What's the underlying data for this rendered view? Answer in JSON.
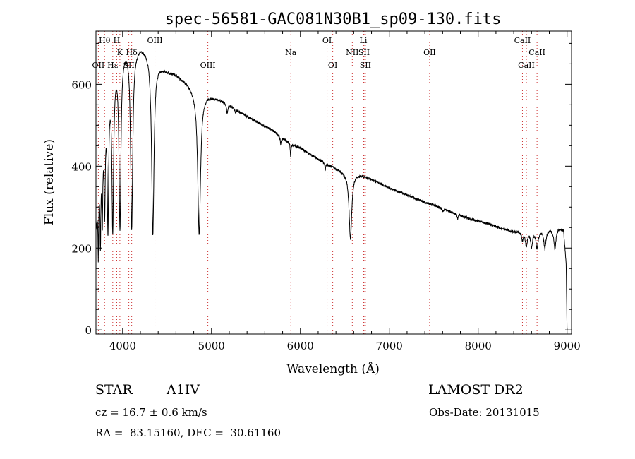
{
  "chart_data": {
    "type": "line",
    "title": "spec-56581-GAC081N30B1_sp09-130.fits",
    "xlabel": "Wavelength (Å)",
    "ylabel": "Flux (relative)",
    "xlim": [
      3700,
      9050
    ],
    "ylim": [
      -10,
      730
    ],
    "x_ticks": [
      4000,
      5000,
      6000,
      7000,
      8000,
      9000
    ],
    "y_ticks": [
      0,
      200,
      400,
      600
    ],
    "x_tick_labels": [
      "4000",
      "5000",
      "6000",
      "7000",
      "8000",
      "9000"
    ],
    "y_tick_labels": [
      "0",
      "200",
      "400",
      "600"
    ],
    "grid": false,
    "series": [
      {
        "continuum": [
          [
            3700,
            250
          ],
          [
            3720,
            300
          ],
          [
            3760,
            420
          ],
          [
            3800,
            520
          ],
          [
            3850,
            600
          ],
          [
            3900,
            640
          ],
          [
            3950,
            670
          ],
          [
            4000,
            690
          ],
          [
            4050,
            695
          ],
          [
            4100,
            692
          ],
          [
            4150,
            690
          ],
          [
            4200,
            695
          ],
          [
            4250,
            690
          ],
          [
            4300,
            680
          ],
          [
            4400,
            650
          ],
          [
            4500,
            635
          ],
          [
            4600,
            625
          ],
          [
            4700,
            610
          ],
          [
            4800,
            590
          ],
          [
            4900,
            578
          ],
          [
            5000,
            572
          ],
          [
            5100,
            562
          ],
          [
            5200,
            550
          ],
          [
            5300,
            536
          ],
          [
            5400,
            522
          ],
          [
            5500,
            510
          ],
          [
            5600,
            498
          ],
          [
            5700,
            486
          ],
          [
            5800,
            470
          ],
          [
            5900,
            454
          ],
          [
            6000,
            445
          ],
          [
            6100,
            430
          ],
          [
            6200,
            418
          ],
          [
            6300,
            405
          ],
          [
            6400,
            395
          ],
          [
            6500,
            385
          ],
          [
            6600,
            382
          ],
          [
            6700,
            378
          ],
          [
            6800,
            368
          ],
          [
            6900,
            358
          ],
          [
            7000,
            347
          ],
          [
            7100,
            338
          ],
          [
            7200,
            330
          ],
          [
            7300,
            320
          ],
          [
            7400,
            312
          ],
          [
            7500,
            305
          ],
          [
            7600,
            297
          ],
          [
            7700,
            288
          ],
          [
            7800,
            280
          ],
          [
            7900,
            272
          ],
          [
            8000,
            266
          ],
          [
            8100,
            260
          ],
          [
            8200,
            253
          ],
          [
            8300,
            246
          ],
          [
            8400,
            240
          ],
          [
            8500,
            240
          ],
          [
            8600,
            240
          ],
          [
            8700,
            243
          ],
          [
            8800,
            245
          ],
          [
            8900,
            250
          ],
          [
            8960,
            245
          ],
          [
            8990,
            160
          ],
          [
            9000,
            0
          ]
        ],
        "absorption": [
          [
            3726,
            0.45,
            4
          ],
          [
            3750,
            0.48,
            5
          ],
          [
            3771,
            0.42,
            6
          ],
          [
            3798,
            0.45,
            7
          ],
          [
            3835,
            0.58,
            9
          ],
          [
            3889,
            0.62,
            11
          ],
          [
            3970,
            0.63,
            13
          ],
          [
            4102,
            0.64,
            14
          ],
          [
            4340,
            0.65,
            16
          ],
          [
            4861,
            0.6,
            19
          ],
          [
            5176,
            0.04,
            8
          ],
          [
            5270,
            0.02,
            6
          ],
          [
            5780,
            0.04,
            8
          ],
          [
            5890,
            0.07,
            5
          ],
          [
            6280,
            0.04,
            5
          ],
          [
            6563,
            0.42,
            18
          ],
          [
            7600,
            0.02,
            10
          ],
          [
            7770,
            0.04,
            6
          ],
          [
            8498,
            0.08,
            10
          ],
          [
            8542,
            0.14,
            13
          ],
          [
            8600,
            0.15,
            12
          ],
          [
            8662,
            0.17,
            14
          ],
          [
            8750,
            0.18,
            14
          ],
          [
            8863,
            0.2,
            14
          ]
        ]
      }
    ],
    "lines": [
      {
        "label": "OII",
        "x": 3727,
        "row": 2
      },
      {
        "label": "Hθ",
        "x": 3797,
        "row": 0
      },
      {
        "label": "Hε",
        "x": 3889,
        "row": 2
      },
      {
        "label": "H",
        "x": 3934,
        "row": 0
      },
      {
        "label": "K",
        "x": 3969,
        "row": 1
      },
      {
        "label": "SII",
        "x": 4070,
        "row": 2
      },
      {
        "label": "Hδ",
        "x": 4102,
        "row": 1
      },
      {
        "label": "OIII",
        "x": 4363,
        "row": 0
      },
      {
        "label": "OIII",
        "x": 4959,
        "row": 2
      },
      {
        "label": "Na",
        "x": 5893,
        "row": 1
      },
      {
        "label": "OI",
        "x": 6300,
        "row": 0
      },
      {
        "label": "OI",
        "x": 6364,
        "row": 2
      },
      {
        "label": "NII",
        "x": 6584,
        "row": 1
      },
      {
        "label": "Li",
        "x": 6708,
        "row": 0
      },
      {
        "label": "SII",
        "x": 6716,
        "row": 1
      },
      {
        "label": "SII",
        "x": 6731,
        "row": 2
      },
      {
        "label": "OII",
        "x": 7454,
        "row": 1
      },
      {
        "label": "CaII",
        "x": 8498,
        "row": 0
      },
      {
        "label": "CaII",
        "x": 8542,
        "row": 2
      },
      {
        "label": "CaII",
        "x": 8662,
        "row": 1
      }
    ],
    "legend": "none"
  },
  "info": {
    "class_label": "STAR",
    "subclass": "A1IV",
    "survey": "LAMOST DR2",
    "redshift": "cz = 16.7 ± 0.6 km/s",
    "obs_date": "Obs-Date: 20131015",
    "coords": "RA =  83.15160, DEC =  30.61160"
  },
  "colors": {
    "spectrum": "#000000",
    "line_markers": "#cc3333",
    "axes": "#000000"
  }
}
